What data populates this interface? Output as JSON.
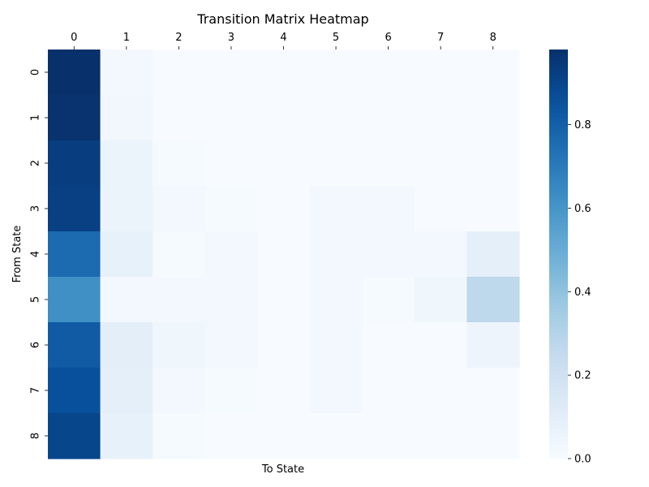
{
  "chart_data": {
    "type": "heatmap",
    "title": "Transition Matrix Heatmap",
    "xlabel": "To State",
    "ylabel": "From State",
    "x_ticks": [
      "0",
      "1",
      "2",
      "3",
      "4",
      "5",
      "6",
      "7",
      "8"
    ],
    "y_ticks": [
      "0",
      "1",
      "2",
      "3",
      "4",
      "5",
      "6",
      "7",
      "8"
    ],
    "x_axis_position": "top",
    "colormap": "Blues",
    "vmin": 0.0,
    "vmax": 0.98,
    "colorbar_ticks": [
      "0.0",
      "0.2",
      "0.4",
      "0.6",
      "0.8"
    ],
    "colorbar_values": [
      0.0,
      0.2,
      0.4,
      0.6,
      0.8
    ],
    "grid": false,
    "values": [
      [
        0.98,
        0.02,
        0.0,
        0.0,
        0.0,
        0.0,
        0.0,
        0.0,
        0.0
      ],
      [
        0.97,
        0.03,
        0.0,
        0.0,
        0.0,
        0.0,
        0.0,
        0.0,
        0.0
      ],
      [
        0.93,
        0.06,
        0.01,
        0.0,
        0.0,
        0.0,
        0.0,
        0.0,
        0.0
      ],
      [
        0.92,
        0.06,
        0.02,
        0.01,
        0.0,
        0.02,
        0.02,
        0.0,
        0.0
      ],
      [
        0.76,
        0.08,
        0.01,
        0.02,
        0.0,
        0.02,
        0.02,
        0.02,
        0.09
      ],
      [
        0.62,
        0.02,
        0.02,
        0.02,
        0.0,
        0.02,
        0.01,
        0.04,
        0.27
      ],
      [
        0.82,
        0.1,
        0.04,
        0.02,
        0.0,
        0.02,
        0.0,
        0.0,
        0.05
      ],
      [
        0.86,
        0.09,
        0.02,
        0.01,
        0.0,
        0.02,
        0.0,
        0.0,
        0.0
      ],
      [
        0.9,
        0.08,
        0.01,
        0.0,
        0.0,
        0.0,
        0.0,
        0.0,
        0.0
      ]
    ]
  }
}
